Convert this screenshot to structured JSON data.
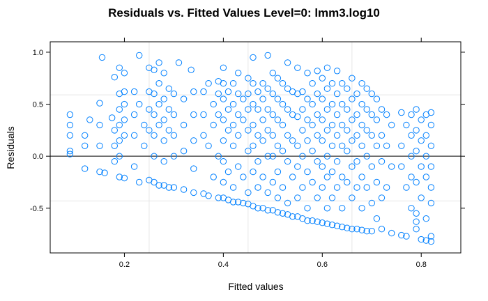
{
  "chart_data": {
    "type": "scatter",
    "title": "Residuals vs. Fitted Values Level=0: lmm3.log10",
    "xlabel": "Fitted values",
    "ylabel": "Residuals",
    "xlim": [
      0.05,
      0.88
    ],
    "ylim": [
      -0.93,
      1.1
    ],
    "x_ticks": [
      0.2,
      0.4,
      0.6,
      0.8
    ],
    "x_tick_labels": [
      "0.2",
      "0.4",
      "0.6",
      "0.8"
    ],
    "y_ticks": [
      -0.5,
      0.0,
      0.5,
      1.0
    ],
    "y_tick_labels": [
      "-0.5",
      "0.0",
      "0.5",
      "1.0"
    ],
    "x_grid": [
      0.25,
      0.45,
      0.66
    ],
    "y_grid": [
      -0.43,
      0.0,
      0.59
    ],
    "reference_line_y": 0.0,
    "grid": true,
    "marker": "open-circle",
    "color": "#0080ff",
    "points": [
      [
        0.09,
        0.4
      ],
      [
        0.09,
        0.3
      ],
      [
        0.09,
        0.2
      ],
      [
        0.09,
        0.05
      ],
      [
        0.09,
        0.02
      ],
      [
        0.12,
        0.2
      ],
      [
        0.12,
        0.1
      ],
      [
        0.12,
        -0.12
      ],
      [
        0.13,
        0.35
      ],
      [
        0.15,
        0.51
      ],
      [
        0.15,
        0.3
      ],
      [
        0.15,
        0.1
      ],
      [
        0.15,
        -0.15
      ],
      [
        0.155,
        0.95
      ],
      [
        0.16,
        -0.16
      ],
      [
        0.175,
        0.37
      ],
      [
        0.18,
        0.76
      ],
      [
        0.18,
        0.25
      ],
      [
        0.18,
        0.1
      ],
      [
        0.18,
        -0.05
      ],
      [
        0.19,
        0.85
      ],
      [
        0.19,
        0.6
      ],
      [
        0.19,
        0.45
      ],
      [
        0.19,
        0.3
      ],
      [
        0.19,
        0.15
      ],
      [
        0.19,
        0.0
      ],
      [
        0.19,
        -0.2
      ],
      [
        0.2,
        0.8
      ],
      [
        0.2,
        0.62
      ],
      [
        0.2,
        0.5
      ],
      [
        0.2,
        0.35
      ],
      [
        0.2,
        0.2
      ],
      [
        0.2,
        -0.21
      ],
      [
        0.22,
        0.62
      ],
      [
        0.22,
        0.4
      ],
      [
        0.22,
        0.2
      ],
      [
        0.22,
        -0.1
      ],
      [
        0.23,
        0.97
      ],
      [
        0.23,
        0.5
      ],
      [
        0.23,
        -0.25
      ],
      [
        0.24,
        0.3
      ],
      [
        0.24,
        0.1
      ],
      [
        0.25,
        0.85
      ],
      [
        0.25,
        0.62
      ],
      [
        0.25,
        0.45
      ],
      [
        0.25,
        0.25
      ],
      [
        0.25,
        -0.23
      ],
      [
        0.26,
        0.83
      ],
      [
        0.26,
        0.6
      ],
      [
        0.26,
        0.4
      ],
      [
        0.26,
        0.2
      ],
      [
        0.26,
        0.0
      ],
      [
        0.26,
        -0.25
      ],
      [
        0.27,
        0.9
      ],
      [
        0.27,
        0.7
      ],
      [
        0.27,
        0.5
      ],
      [
        0.27,
        0.3
      ],
      [
        0.27,
        -0.28
      ],
      [
        0.28,
        0.8
      ],
      [
        0.28,
        0.55
      ],
      [
        0.28,
        0.35
      ],
      [
        0.28,
        0.15
      ],
      [
        0.28,
        -0.05
      ],
      [
        0.28,
        -0.28
      ],
      [
        0.29,
        0.65
      ],
      [
        0.29,
        0.45
      ],
      [
        0.29,
        0.25
      ],
      [
        0.29,
        -0.3
      ],
      [
        0.3,
        0.6
      ],
      [
        0.3,
        0.4
      ],
      [
        0.3,
        0.2
      ],
      [
        0.3,
        0.0
      ],
      [
        0.3,
        -0.3
      ],
      [
        0.31,
        0.9
      ],
      [
        0.32,
        0.55
      ],
      [
        0.32,
        0.3
      ],
      [
        0.32,
        0.05
      ],
      [
        0.32,
        -0.32
      ],
      [
        0.335,
        0.83
      ],
      [
        0.34,
        0.62
      ],
      [
        0.34,
        0.4
      ],
      [
        0.34,
        0.15
      ],
      [
        0.34,
        -0.12
      ],
      [
        0.34,
        -0.35
      ],
      [
        0.36,
        0.62
      ],
      [
        0.36,
        0.4
      ],
      [
        0.36,
        0.2
      ],
      [
        0.36,
        -0.36
      ],
      [
        0.37,
        0.7
      ],
      [
        0.37,
        0.1
      ],
      [
        0.37,
        -0.38
      ],
      [
        0.38,
        0.5
      ],
      [
        0.38,
        0.3
      ],
      [
        0.38,
        -0.2
      ],
      [
        0.39,
        0.72
      ],
      [
        0.39,
        0.6
      ],
      [
        0.39,
        0.4
      ],
      [
        0.39,
        0.0
      ],
      [
        0.39,
        -0.4
      ],
      [
        0.4,
        0.85
      ],
      [
        0.4,
        0.7
      ],
      [
        0.4,
        0.55
      ],
      [
        0.4,
        0.35
      ],
      [
        0.4,
        0.15
      ],
      [
        0.4,
        -0.05
      ],
      [
        0.4,
        -0.25
      ],
      [
        0.4,
        -0.4
      ],
      [
        0.41,
        0.62
      ],
      [
        0.41,
        0.45
      ],
      [
        0.41,
        0.25
      ],
      [
        0.41,
        -0.15
      ],
      [
        0.41,
        -0.42
      ],
      [
        0.42,
        0.7
      ],
      [
        0.42,
        0.5
      ],
      [
        0.42,
        0.3
      ],
      [
        0.42,
        0.1
      ],
      [
        0.42,
        -0.3
      ],
      [
        0.42,
        -0.44
      ],
      [
        0.43,
        0.8
      ],
      [
        0.43,
        0.6
      ],
      [
        0.43,
        0.4
      ],
      [
        0.43,
        0.2
      ],
      [
        0.43,
        -0.1
      ],
      [
        0.43,
        -0.44
      ],
      [
        0.44,
        0.55
      ],
      [
        0.44,
        0.35
      ],
      [
        0.44,
        -0.2
      ],
      [
        0.44,
        -0.45
      ],
      [
        0.45,
        0.75
      ],
      [
        0.45,
        0.6
      ],
      [
        0.45,
        0.45
      ],
      [
        0.45,
        0.25
      ],
      [
        0.45,
        0.05
      ],
      [
        0.45,
        -0.35
      ],
      [
        0.45,
        -0.46
      ],
      [
        0.46,
        0.95
      ],
      [
        0.46,
        0.7
      ],
      [
        0.46,
        0.5
      ],
      [
        0.46,
        0.3
      ],
      [
        0.46,
        0.1
      ],
      [
        0.46,
        -0.15
      ],
      [
        0.46,
        -0.48
      ],
      [
        0.47,
        0.62
      ],
      [
        0.47,
        0.45
      ],
      [
        0.47,
        0.2
      ],
      [
        0.47,
        -0.05
      ],
      [
        0.47,
        -0.3
      ],
      [
        0.47,
        -0.5
      ],
      [
        0.48,
        0.7
      ],
      [
        0.48,
        0.55
      ],
      [
        0.48,
        0.35
      ],
      [
        0.48,
        0.15
      ],
      [
        0.48,
        -0.2
      ],
      [
        0.48,
        -0.5
      ],
      [
        0.49,
        0.97
      ],
      [
        0.49,
        0.65
      ],
      [
        0.49,
        0.45
      ],
      [
        0.49,
        0.25
      ],
      [
        0.49,
        0.0
      ],
      [
        0.49,
        -0.35
      ],
      [
        0.49,
        -0.52
      ],
      [
        0.5,
        0.8
      ],
      [
        0.5,
        0.6
      ],
      [
        0.5,
        0.4
      ],
      [
        0.5,
        0.2
      ],
      [
        0.5,
        0.0
      ],
      [
        0.5,
        -0.25
      ],
      [
        0.5,
        -0.52
      ],
      [
        0.51,
        0.75
      ],
      [
        0.51,
        0.55
      ],
      [
        0.51,
        0.35
      ],
      [
        0.51,
        0.1
      ],
      [
        0.51,
        -0.15
      ],
      [
        0.51,
        -0.4
      ],
      [
        0.51,
        -0.54
      ],
      [
        0.52,
        0.7
      ],
      [
        0.52,
        0.5
      ],
      [
        0.52,
        0.3
      ],
      [
        0.52,
        0.05
      ],
      [
        0.52,
        -0.3
      ],
      [
        0.52,
        -0.55
      ],
      [
        0.53,
        0.9
      ],
      [
        0.53,
        0.65
      ],
      [
        0.53,
        0.45
      ],
      [
        0.53,
        0.2
      ],
      [
        0.53,
        -0.05
      ],
      [
        0.53,
        -0.45
      ],
      [
        0.53,
        -0.56
      ],
      [
        0.54,
        0.62
      ],
      [
        0.54,
        0.4
      ],
      [
        0.54,
        0.15
      ],
      [
        0.54,
        -0.2
      ],
      [
        0.54,
        -0.58
      ],
      [
        0.55,
        0.85
      ],
      [
        0.55,
        0.6
      ],
      [
        0.55,
        0.38
      ],
      [
        0.55,
        0.1
      ],
      [
        0.55,
        -0.1
      ],
      [
        0.55,
        -0.4
      ],
      [
        0.55,
        -0.58
      ],
      [
        0.56,
        0.62
      ],
      [
        0.56,
        0.45
      ],
      [
        0.56,
        0.25
      ],
      [
        0.56,
        0.0
      ],
      [
        0.56,
        -0.3
      ],
      [
        0.56,
        -0.6
      ],
      [
        0.57,
        0.8
      ],
      [
        0.57,
        0.55
      ],
      [
        0.57,
        0.35
      ],
      [
        0.57,
        0.15
      ],
      [
        0.57,
        -0.15
      ],
      [
        0.57,
        -0.5
      ],
      [
        0.57,
        -0.62
      ],
      [
        0.58,
        0.7
      ],
      [
        0.58,
        0.5
      ],
      [
        0.58,
        0.3
      ],
      [
        0.58,
        0.05
      ],
      [
        0.58,
        -0.25
      ],
      [
        0.58,
        -0.62
      ],
      [
        0.59,
        0.82
      ],
      [
        0.59,
        0.6
      ],
      [
        0.59,
        0.4
      ],
      [
        0.59,
        0.2
      ],
      [
        0.59,
        -0.05
      ],
      [
        0.59,
        -0.4
      ],
      [
        0.59,
        -0.63
      ],
      [
        0.6,
        0.75
      ],
      [
        0.6,
        0.55
      ],
      [
        0.6,
        0.35
      ],
      [
        0.6,
        0.15
      ],
      [
        0.6,
        -0.1
      ],
      [
        0.6,
        -0.3
      ],
      [
        0.6,
        -0.64
      ],
      [
        0.61,
        0.85
      ],
      [
        0.61,
        0.65
      ],
      [
        0.61,
        0.45
      ],
      [
        0.61,
        0.25
      ],
      [
        0.61,
        0.0
      ],
      [
        0.61,
        -0.2
      ],
      [
        0.61,
        -0.5
      ],
      [
        0.61,
        -0.65
      ],
      [
        0.62,
        0.7
      ],
      [
        0.62,
        0.5
      ],
      [
        0.62,
        0.3
      ],
      [
        0.62,
        0.1
      ],
      [
        0.62,
        -0.15
      ],
      [
        0.62,
        -0.4
      ],
      [
        0.62,
        -0.66
      ],
      [
        0.63,
        0.82
      ],
      [
        0.63,
        0.6
      ],
      [
        0.63,
        0.4
      ],
      [
        0.63,
        0.2
      ],
      [
        0.63,
        -0.05
      ],
      [
        0.63,
        -0.3
      ],
      [
        0.63,
        -0.67
      ],
      [
        0.64,
        0.7
      ],
      [
        0.64,
        0.5
      ],
      [
        0.64,
        0.3
      ],
      [
        0.64,
        0.1
      ],
      [
        0.64,
        -0.2
      ],
      [
        0.64,
        -0.5
      ],
      [
        0.64,
        -0.68
      ],
      [
        0.65,
        0.65
      ],
      [
        0.65,
        0.45
      ],
      [
        0.65,
        0.25
      ],
      [
        0.65,
        0.05
      ],
      [
        0.65,
        -0.25
      ],
      [
        0.65,
        -0.69
      ],
      [
        0.66,
        0.75
      ],
      [
        0.66,
        0.55
      ],
      [
        0.66,
        0.35
      ],
      [
        0.66,
        0.15
      ],
      [
        0.66,
        -0.1
      ],
      [
        0.66,
        -0.4
      ],
      [
        0.66,
        -0.7
      ],
      [
        0.67,
        0.6
      ],
      [
        0.67,
        0.4
      ],
      [
        0.67,
        0.2
      ],
      [
        0.67,
        -0.05
      ],
      [
        0.67,
        -0.3
      ],
      [
        0.67,
        -0.7
      ],
      [
        0.68,
        0.7
      ],
      [
        0.68,
        0.5
      ],
      [
        0.68,
        0.3
      ],
      [
        0.68,
        0.1
      ],
      [
        0.68,
        -0.2
      ],
      [
        0.68,
        -0.5
      ],
      [
        0.68,
        -0.71
      ],
      [
        0.69,
        0.65
      ],
      [
        0.69,
        0.45
      ],
      [
        0.69,
        0.25
      ],
      [
        0.69,
        0.0
      ],
      [
        0.69,
        -0.3
      ],
      [
        0.69,
        -0.72
      ],
      [
        0.7,
        0.6
      ],
      [
        0.7,
        0.4
      ],
      [
        0.7,
        0.2
      ],
      [
        0.7,
        -0.1
      ],
      [
        0.7,
        -0.45
      ],
      [
        0.7,
        -0.72
      ],
      [
        0.71,
        0.55
      ],
      [
        0.71,
        0.35
      ],
      [
        0.71,
        0.1
      ],
      [
        0.71,
        -0.25
      ],
      [
        0.71,
        -0.6
      ],
      [
        0.72,
        0.45
      ],
      [
        0.72,
        0.2
      ],
      [
        0.72,
        -0.05
      ],
      [
        0.72,
        -0.4
      ],
      [
        0.72,
        -0.7
      ],
      [
        0.73,
        0.4
      ],
      [
        0.73,
        0.1
      ],
      [
        0.73,
        -0.3
      ],
      [
        0.74,
        0.3
      ],
      [
        0.74,
        -0.1
      ],
      [
        0.74,
        -0.74
      ],
      [
        0.76,
        0.42
      ],
      [
        0.76,
        0.1
      ],
      [
        0.76,
        -0.1
      ],
      [
        0.76,
        -0.76
      ],
      [
        0.77,
        0.3
      ],
      [
        0.77,
        -0.3
      ],
      [
        0.77,
        -0.77
      ],
      [
        0.78,
        0.4
      ],
      [
        0.78,
        0.2
      ],
      [
        0.78,
        0.0
      ],
      [
        0.78,
        -0.2
      ],
      [
        0.78,
        -0.5
      ],
      [
        0.79,
        0.45
      ],
      [
        0.79,
        0.25
      ],
      [
        0.79,
        0.05
      ],
      [
        0.79,
        -0.25
      ],
      [
        0.79,
        -0.55
      ],
      [
        0.79,
        -0.63
      ],
      [
        0.79,
        -0.7
      ],
      [
        0.8,
        0.35
      ],
      [
        0.8,
        0.15
      ],
      [
        0.8,
        -0.1
      ],
      [
        0.8,
        -0.4
      ],
      [
        0.8,
        -0.8
      ],
      [
        0.81,
        0.4
      ],
      [
        0.81,
        0.2
      ],
      [
        0.81,
        0.0
      ],
      [
        0.81,
        -0.2
      ],
      [
        0.81,
        -0.6
      ],
      [
        0.81,
        -0.81
      ],
      [
        0.82,
        0.42
      ],
      [
        0.82,
        0.3
      ],
      [
        0.82,
        0.1
      ],
      [
        0.82,
        -0.1
      ],
      [
        0.82,
        -0.3
      ],
      [
        0.82,
        -0.45
      ],
      [
        0.82,
        -0.77
      ],
      [
        0.82,
        -0.82
      ]
    ]
  }
}
